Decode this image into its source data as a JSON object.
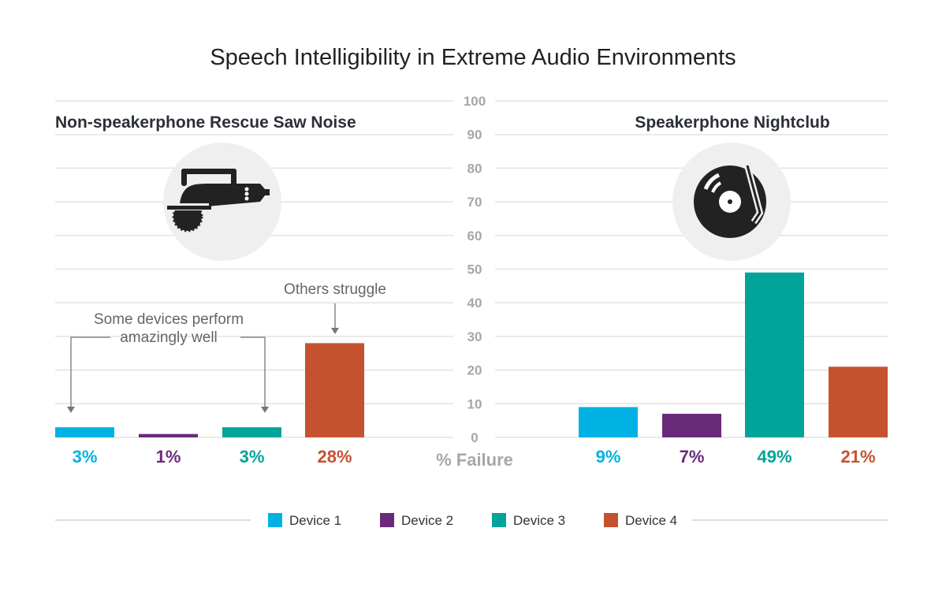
{
  "chart_data": [
    {
      "type": "bar",
      "title": "Speech Intelligibility in Extreme Audio Environments",
      "subtitle": "Non-speakerphone Rescue Saw Noise",
      "icon": "circular-saw-icon",
      "categories": [
        "Device 1",
        "Device 2",
        "Device 3",
        "Device 4"
      ],
      "values": [
        3,
        1,
        3,
        28
      ],
      "data_labels": [
        "3%",
        "1%",
        "3%",
        "28%"
      ],
      "annotations": [
        {
          "text_lines": [
            "Some devices perform",
            "amazingly well"
          ],
          "targets": [
            "Device 1",
            "Device 3"
          ]
        },
        {
          "text_lines": [
            "Others struggle"
          ],
          "targets": [
            "Device 4"
          ]
        }
      ],
      "ylabel": "% Failure",
      "ylim": [
        0,
        100
      ],
      "grid": true
    },
    {
      "type": "bar",
      "subtitle": "Speakerphone Nightclub",
      "icon": "vinyl-record-icon",
      "categories": [
        "Device 1",
        "Device 2",
        "Device 3",
        "Device 4"
      ],
      "values": [
        9,
        7,
        49,
        21
      ],
      "data_labels": [
        "9%",
        "7%",
        "49%",
        "21%"
      ],
      "ylabel": "% Failure",
      "ylim": [
        0,
        100
      ],
      "grid": true
    }
  ],
  "yticks": [
    "0",
    "10",
    "20",
    "30",
    "40",
    "50",
    "60",
    "70",
    "80",
    "90",
    "100"
  ],
  "legend": {
    "placement": "bottom",
    "items": [
      {
        "label": "Device 1",
        "color": "#00b2e3"
      },
      {
        "label": "Device 2",
        "color": "#6a2a7a"
      },
      {
        "label": "Device 3",
        "color": "#00a499"
      },
      {
        "label": "Device 4",
        "color": "#c4522f"
      }
    ]
  }
}
